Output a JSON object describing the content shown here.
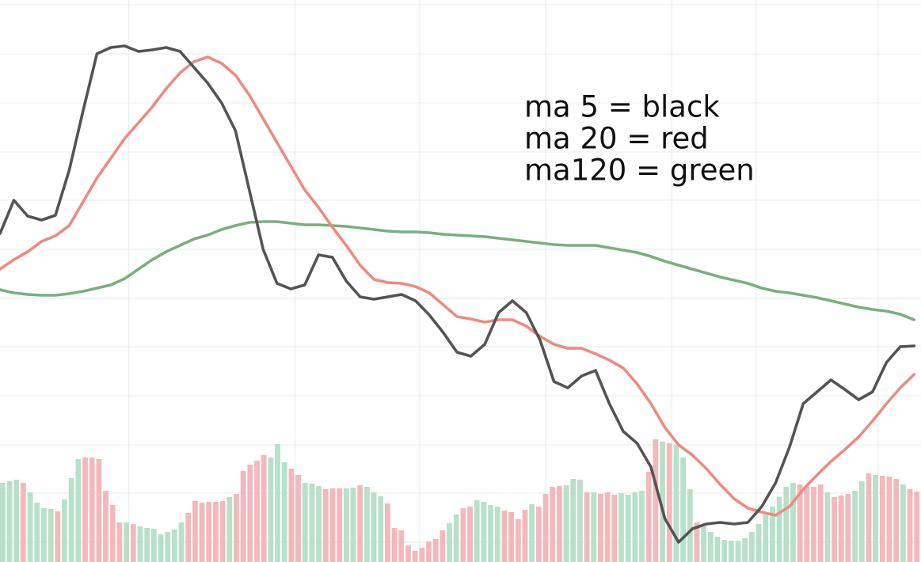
{
  "chart_data": {
    "type": "line",
    "ylim": [
      0,
      710
    ],
    "yticks": [
      25,
      87,
      148,
      210,
      272,
      333,
      395,
      457,
      518,
      580,
      642,
      704
    ],
    "xlim": [
      0,
      66.5
    ],
    "xticks": [
      9.3,
      21.3,
      30.3,
      39.4,
      48.5,
      54.6,
      63.4
    ],
    "grid": true,
    "series": [
      {
        "name": "ma 5 = black",
        "color": "#545454",
        "values": [
          415,
          457,
          437,
          432,
          438,
          495,
          570,
          642,
          650,
          652,
          645,
          647,
          650,
          645,
          625,
          605,
          580,
          545,
          470,
          395,
          352,
          345,
          350,
          388,
          385,
          355,
          335,
          332,
          335,
          338,
          330,
          312,
          290,
          265,
          260,
          275,
          315,
          330,
          315,
          280,
          228,
          220,
          235,
          242,
          200,
          165,
          150,
          120,
          55,
          25,
          42,
          48,
          50,
          48,
          50,
          70,
          100,
          145,
          200,
          215,
          230,
          218,
          205,
          215,
          252,
          272,
          273
        ]
      },
      {
        "name": "ma 20 = red",
        "color": "#ef8a80",
        "values": [
          370,
          382,
          392,
          405,
          412,
          425,
          455,
          485,
          510,
          535,
          555,
          575,
          598,
          618,
          632,
          638,
          630,
          615,
          590,
          560,
          530,
          500,
          470,
          448,
          423,
          400,
          375,
          357,
          353,
          352,
          348,
          340,
          325,
          310,
          307,
          303,
          306,
          306,
          298,
          285,
          275,
          270,
          270,
          263,
          255,
          245,
          225,
          200,
          170,
          148,
          135,
          118,
          98,
          80,
          68,
          63,
          59,
          70,
          92,
          110,
          127,
          142,
          158,
          178,
          200,
          220,
          237
        ]
      },
      {
        "name": "ma120 = green",
        "color": "#78b07e",
        "values": [
          344,
          340,
          338,
          337,
          337,
          339,
          342,
          346,
          350,
          358,
          370,
          382,
          392,
          400,
          408,
          413,
          420,
          425,
          429,
          430,
          430,
          428,
          426,
          426,
          425,
          424,
          422,
          420,
          418,
          417,
          417,
          416,
          414,
          413,
          412,
          411,
          409,
          407,
          405,
          403,
          401,
          400,
          400,
          400,
          397,
          394,
          391,
          386,
          380,
          375,
          370,
          365,
          360,
          356,
          352,
          346,
          342,
          340,
          337,
          334,
          330,
          326,
          322,
          319,
          317,
          313,
          306
        ]
      }
    ],
    "volume": {
      "ylim": [
        0,
        710
      ],
      "values": [
        100,
        102,
        104,
        100,
        88,
        75,
        68,
        67,
        64,
        79,
        106,
        130,
        132,
        132,
        130,
        90,
        72,
        50,
        50,
        48,
        45,
        43,
        42,
        35,
        38,
        41,
        50,
        62,
        77,
        75,
        76,
        76,
        77,
        82,
        86,
        115,
        123,
        128,
        135,
        132,
        149,
        126,
        118,
        110,
        100,
        99,
        96,
        92,
        93,
        93,
        93,
        94,
        97,
        95,
        88,
        83,
        74,
        43,
        40,
        21,
        14,
        18,
        26,
        29,
        40,
        49,
        60,
        68,
        70,
        78,
        76,
        72,
        70,
        65,
        63,
        54,
        66,
        73,
        70,
        86,
        95,
        96,
        97,
        105,
        104,
        88,
        88,
        86,
        88,
        85,
        87,
        85,
        88,
        90,
        114,
        155,
        152,
        150,
        148,
        132,
        92,
        50,
        45,
        38,
        32,
        28,
        27,
        27,
        30,
        38,
        48,
        60,
        70,
        82,
        95,
        100,
        98,
        95,
        95,
        98,
        88,
        82,
        84,
        86,
        90,
        102,
        112,
        110,
        109,
        108,
        105,
        98,
        92,
        89
      ],
      "colors": [
        "#b7e1c9",
        "#b7e1c9",
        "#b7e1c9",
        "#f4b8bc",
        "#b7e1c9",
        "#b7e1c9",
        "#b7e1c9",
        "#b7e1c9",
        "#f4b8bc",
        "#b7e1c9",
        "#b7e1c9",
        "#b7e1c9",
        "#f4b8bc",
        "#f4b8bc",
        "#f4b8bc",
        "#f4b8bc",
        "#f4b8bc",
        "#f4b8bc",
        "#b7e1c9",
        "#f4b8bc",
        "#b7e1c9",
        "#b7e1c9",
        "#b7e1c9",
        "#b7e1c9",
        "#b7e1c9",
        "#b7e1c9",
        "#b7e1c9",
        "#f4b8bc",
        "#f4b8bc",
        "#f4b8bc",
        "#f4b8bc",
        "#f4b8bc",
        "#f4b8bc",
        "#b7e1c9",
        "#f4b8bc",
        "#f4b8bc",
        "#f4b8bc",
        "#f4b8bc",
        "#f4b8bc",
        "#b7e1c9",
        "#b7e1c9",
        "#b7e1c9",
        "#f4b8bc",
        "#f4b8bc",
        "#b7e1c9",
        "#b7e1c9",
        "#b7e1c9",
        "#f4b8bc",
        "#f4b8bc",
        "#f4b8bc",
        "#b7e1c9",
        "#b7e1c9",
        "#f4b8bc",
        "#b7e1c9",
        "#b7e1c9",
        "#b7e1c9",
        "#f4b8bc",
        "#f4b8bc",
        "#f4b8bc",
        "#f4b8bc",
        "#f4b8bc",
        "#f4b8bc",
        "#f4b8bc",
        "#f4b8bc",
        "#f4b8bc",
        "#b7e1c9",
        "#b7e1c9",
        "#f4b8bc",
        "#f4b8bc",
        "#b7e1c9",
        "#b7e1c9",
        "#b7e1c9",
        "#b7e1c9",
        "#f4b8bc",
        "#f4b8bc",
        "#f4b8bc",
        "#f4b8bc",
        "#b7e1c9",
        "#f4b8bc",
        "#f4b8bc",
        "#f4b8bc",
        "#f4b8bc",
        "#b7e1c9",
        "#b7e1c9",
        "#b7e1c9",
        "#f4b8bc",
        "#b7e1c9",
        "#f4b8bc",
        "#f4b8bc",
        "#f4b8bc",
        "#b7e1c9",
        "#b7e1c9",
        "#b7e1c9",
        "#b7e1c9",
        "#f4b8bc",
        "#f4b8bc",
        "#b7e1c9",
        "#f4b8bc",
        "#b7e1c9",
        "#b7e1c9",
        "#b7e1c9",
        "#f4b8bc",
        "#b7e1c9",
        "#b7e1c9",
        "#b7e1c9",
        "#b7e1c9",
        "#b7e1c9",
        "#b7e1c9",
        "#b7e1c9",
        "#b7e1c9",
        "#b7e1c9",
        "#b7e1c9",
        "#b7e1c9",
        "#b7e1c9",
        "#b7e1c9",
        "#b7e1c9",
        "#f4b8bc",
        "#f4b8bc",
        "#f4b8bc",
        "#f4b8bc",
        "#b7e1c9",
        "#f4b8bc",
        "#f4b8bc",
        "#f4b8bc",
        "#b7e1c9",
        "#b7e1c9",
        "#f4b8bc",
        "#b7e1c9",
        "#f4b8bc",
        "#f4b8bc",
        "#f4b8bc",
        "#b7e1c9",
        "#f4b8bc",
        "#f4b8bc"
      ]
    }
  }
}
